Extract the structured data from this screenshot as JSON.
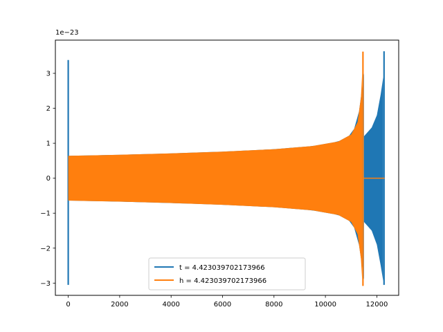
{
  "chart_data": {
    "type": "line",
    "title": "",
    "xlabel": "",
    "ylabel": "",
    "xlim": [
      -500,
      12850
    ],
    "ylim": [
      -3.35,
      3.95
    ],
    "y_scale_offset_label": "1e−23",
    "x_ticks": [
      0,
      2000,
      4000,
      6000,
      8000,
      10000,
      12000
    ],
    "x_tick_labels": [
      "0",
      "2000",
      "4000",
      "6000",
      "8000",
      "10000",
      "12000"
    ],
    "y_ticks": [
      -3,
      -2,
      -1,
      0,
      1,
      2,
      3
    ],
    "y_tick_labels": [
      "−3",
      "−2",
      "−1",
      "0",
      "1",
      "2",
      "3"
    ],
    "grid": false,
    "legend_position": "lower-center",
    "series": [
      {
        "name": "t = 4.423039702173966",
        "color": "#1f77b4",
        "kind": "oscillating-envelope",
        "spike_start": {
          "x": 0,
          "min": -3.05,
          "max": 3.38
        },
        "body_x_range": [
          0,
          11500
        ],
        "envelope_points": [
          {
            "x": 11500,
            "upper": 1.2,
            "lower": -1.25
          },
          {
            "x": 11800,
            "upper": 1.45,
            "lower": -1.5
          },
          {
            "x": 12000,
            "upper": 1.8,
            "lower": -1.9
          },
          {
            "x": 12150,
            "upper": 2.4,
            "lower": -2.5
          },
          {
            "x": 12250,
            "upper": 2.9,
            "lower": -2.95
          }
        ],
        "spike_end": {
          "x": 12280,
          "min": -3.05,
          "max": 3.63
        }
      },
      {
        "name": "h = 4.423039702173966",
        "color": "#ff7f0e",
        "kind": "oscillating-envelope",
        "envelope_points": [
          {
            "x": 0,
            "upper": 0.64,
            "lower": -0.64
          },
          {
            "x": 2000,
            "upper": 0.67,
            "lower": -0.67
          },
          {
            "x": 4000,
            "upper": 0.71,
            "lower": -0.71
          },
          {
            "x": 6000,
            "upper": 0.76,
            "lower": -0.76
          },
          {
            "x": 8000,
            "upper": 0.83,
            "lower": -0.83
          },
          {
            "x": 9500,
            "upper": 0.92,
            "lower": -0.92
          },
          {
            "x": 10500,
            "upper": 1.05,
            "lower": -1.05
          },
          {
            "x": 11000,
            "upper": 1.25,
            "lower": -1.25
          },
          {
            "x": 11250,
            "upper": 1.6,
            "lower": -1.6
          },
          {
            "x": 11380,
            "upper": 2.3,
            "lower": -2.3
          },
          {
            "x": 11430,
            "upper": 3.0,
            "lower": -2.9
          }
        ],
        "spike_end": {
          "x": 11460,
          "min": -3.08,
          "max": 3.62
        },
        "flat_after": {
          "x_range": [
            11480,
            12300
          ],
          "value": 0
        }
      }
    ]
  }
}
